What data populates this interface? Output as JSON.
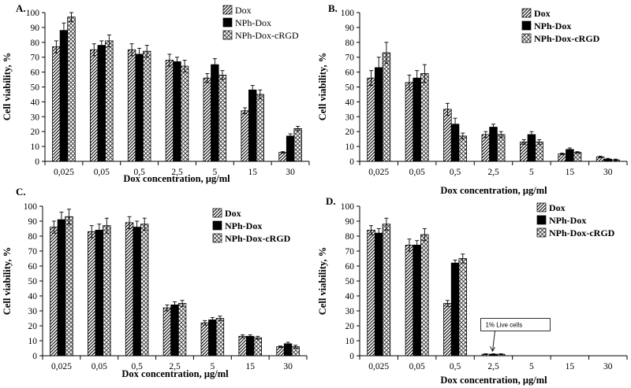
{
  "chart_data": [
    {
      "type": "bar",
      "panel_label": "A.",
      "categories": [
        "0,025",
        "0,05",
        "0,5",
        "2,5",
        "5",
        "15",
        "30"
      ],
      "xlabel": "Dox concentration, μg/ml",
      "ylabel": "Cell viability, %",
      "ylim": [
        0,
        100
      ],
      "yticks": [
        "0",
        "10",
        "20",
        "30",
        "40",
        "50",
        "60",
        "70",
        "80",
        "90",
        "100"
      ],
      "legend_bold": false,
      "series": [
        {
          "name": "Dox",
          "values": [
            77,
            75,
            75,
            68,
            56,
            34,
            6
          ],
          "errors": [
            4,
            4,
            4,
            4,
            3,
            2,
            0.5
          ]
        },
        {
          "name": "NPh-Dox",
          "values": [
            88,
            78,
            72,
            67,
            65,
            48,
            17
          ],
          "errors": [
            5,
            3,
            4,
            3,
            4,
            3,
            1.5
          ]
        },
        {
          "name": "NPh-Dox-cRGD",
          "values": [
            97,
            81,
            74,
            64,
            58,
            45,
            22
          ],
          "errors": [
            3,
            4,
            4,
            4,
            3,
            3,
            1.5
          ]
        }
      ]
    },
    {
      "type": "bar",
      "panel_label": "B.",
      "categories": [
        "0,025",
        "0,05",
        "0,5",
        "2,5",
        "5",
        "15",
        "30"
      ],
      "xlabel": "Dox concentration, μg/ml",
      "ylabel": "Cell viability, %",
      "ylim": [
        0,
        100
      ],
      "yticks": [
        "0",
        "10",
        "20",
        "30",
        "40",
        "50",
        "60",
        "70",
        "80",
        "90",
        "100"
      ],
      "legend_bold": true,
      "series": [
        {
          "name": "Dox",
          "values": [
            56,
            53,
            35,
            18,
            13,
            5,
            3
          ],
          "errors": [
            5,
            5,
            4,
            2,
            1.5,
            0.5,
            0.5
          ]
        },
        {
          "name": "NPh-Dox",
          "values": [
            63,
            56,
            25,
            23,
            18,
            8,
            1.5
          ],
          "errors": [
            7,
            5,
            4,
            2,
            2,
            1,
            0.5
          ]
        },
        {
          "name": "NPh-Dox-cRGD",
          "values": [
            73,
            59,
            17,
            18,
            13,
            6,
            1
          ],
          "errors": [
            7,
            6,
            2,
            2,
            1.5,
            0.5,
            0.5
          ]
        }
      ]
    },
    {
      "type": "bar",
      "panel_label": "C.",
      "categories": [
        "0,025",
        "0,05",
        "0,5",
        "2,5",
        "5",
        "15",
        "30"
      ],
      "xlabel": "Dox concentration, μg/ml",
      "ylabel": "Cell viability, %",
      "ylim": [
        0,
        100
      ],
      "yticks": [
        "0",
        "10",
        "20",
        "30",
        "40",
        "50",
        "60",
        "70",
        "80",
        "90",
        "100"
      ],
      "legend_bold": true,
      "series": [
        {
          "name": "Dox",
          "values": [
            86,
            83,
            89,
            32,
            22,
            13,
            6
          ],
          "errors": [
            4,
            4,
            4,
            2,
            1.5,
            1,
            0.5
          ]
        },
        {
          "name": "NPh-Dox",
          "values": [
            91,
            84,
            86,
            34,
            24,
            13,
            8
          ],
          "errors": [
            5,
            4,
            4,
            2,
            1.5,
            1,
            1
          ]
        },
        {
          "name": "NPh-Dox-cRGD",
          "values": [
            93,
            87,
            88,
            35,
            25,
            12,
            6
          ],
          "errors": [
            5,
            5,
            4,
            2,
            1.5,
            1,
            1
          ]
        }
      ]
    },
    {
      "type": "bar",
      "panel_label": "D.",
      "categories": [
        "0,025",
        "0,05",
        "0,5",
        "2,5",
        "5",
        "15",
        "30"
      ],
      "xlabel": "Dox concentration, μg/ml",
      "ylabel": "Cell viability, %",
      "ylim": [
        0,
        100
      ],
      "yticks": [
        "0",
        "10",
        "20",
        "30",
        "40",
        "50",
        "60",
        "70",
        "80",
        "90",
        "100"
      ],
      "legend_bold": true,
      "series": [
        {
          "name": "Dox",
          "values": [
            84,
            74,
            35,
            1,
            0,
            0,
            0
          ],
          "errors": [
            3,
            4,
            2,
            0.3,
            0,
            0,
            0
          ]
        },
        {
          "name": "NPh-Dox",
          "values": [
            82,
            74,
            62,
            1,
            0,
            0,
            0
          ],
          "errors": [
            3,
            3,
            2,
            0.3,
            0,
            0,
            0
          ]
        },
        {
          "name": "NPh-Dox-cRGD",
          "values": [
            88,
            81,
            65,
            1,
            0,
            0,
            0
          ],
          "errors": [
            4,
            4,
            3,
            0.3,
            0,
            0,
            0
          ]
        }
      ],
      "annotation": {
        "text": "1% Live cells",
        "category": "2,5"
      }
    }
  ]
}
